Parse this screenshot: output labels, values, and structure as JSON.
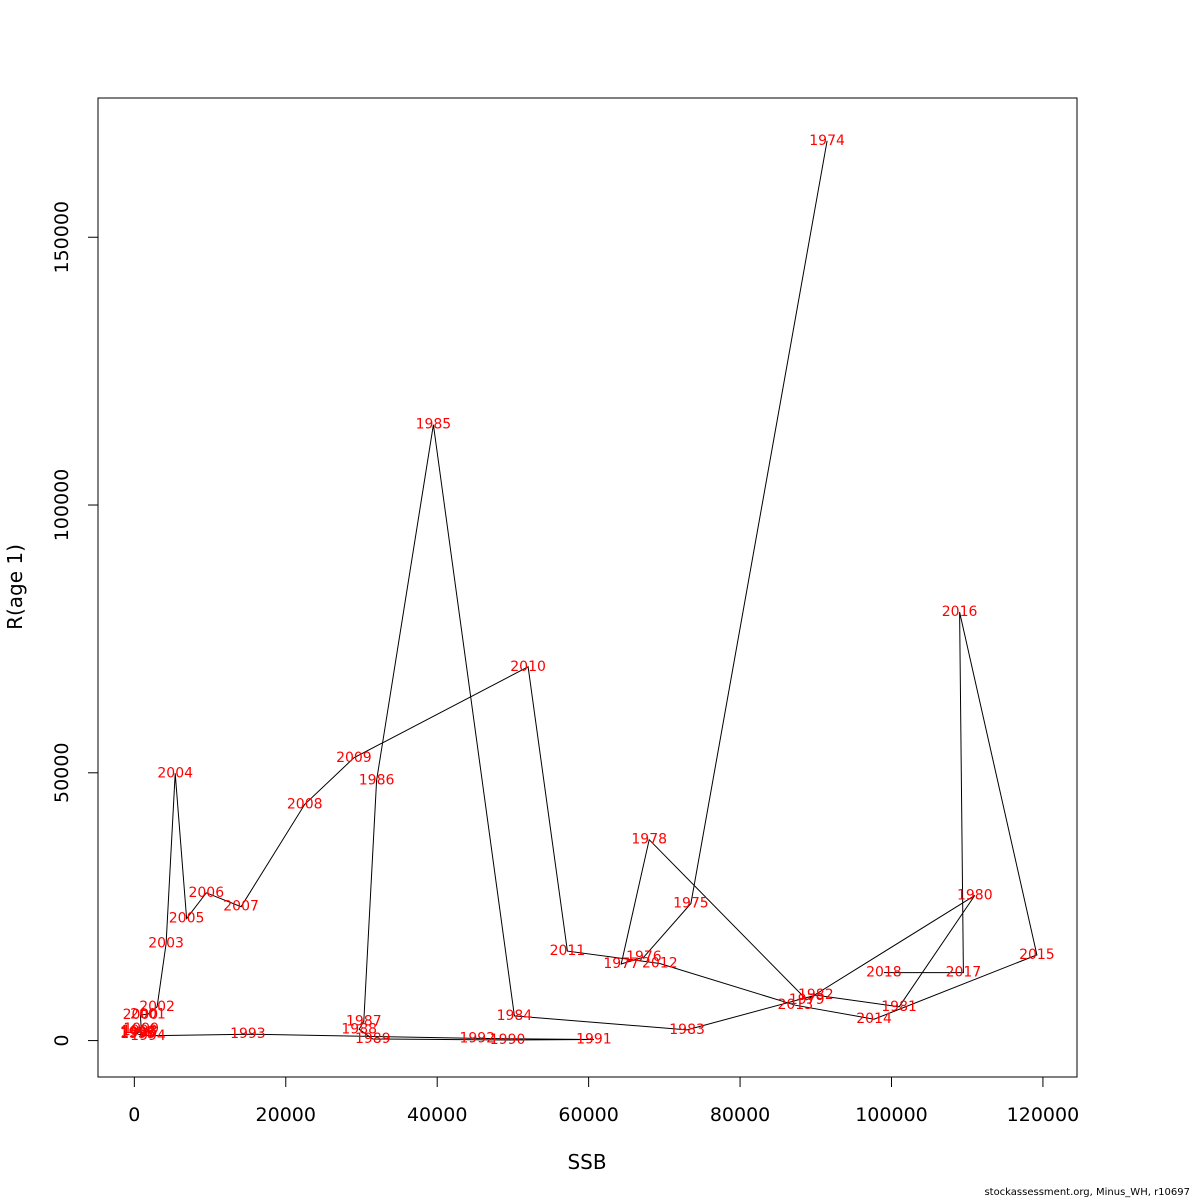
{
  "chart_data": {
    "type": "line",
    "title": "",
    "xlabel": "SSB",
    "ylabel": "R(age 1)",
    "xlim": [
      -4800,
      124500
    ],
    "ylim": [
      -6800,
      176000
    ],
    "x_ticks": [
      0,
      20000,
      40000,
      60000,
      80000,
      100000,
      120000
    ],
    "x_tick_labels": [
      "0",
      "20000",
      "40000",
      "60000",
      "80000",
      "100000",
      "120000"
    ],
    "y_ticks": [
      0,
      50000,
      100000,
      150000
    ],
    "y_tick_labels": [
      "0",
      "50000",
      "100000",
      "150000"
    ],
    "grid": false,
    "line_color": "#000000",
    "label_color": "#ff0000",
    "points": [
      {
        "label": "1974",
        "x": 91500,
        "y": 168000
      },
      {
        "label": "1975",
        "x": 73500,
        "y": 25600
      },
      {
        "label": "1976",
        "x": 67300,
        "y": 15600
      },
      {
        "label": "1977",
        "x": 64300,
        "y": 14300
      },
      {
        "label": "1978",
        "x": 68000,
        "y": 37500
      },
      {
        "label": "1979",
        "x": 88800,
        "y": 7600
      },
      {
        "label": "1980",
        "x": 111000,
        "y": 27100
      },
      {
        "label": "1981",
        "x": 101000,
        "y": 6300
      },
      {
        "label": "1982",
        "x": 90000,
        "y": 8500
      },
      {
        "label": "1983",
        "x": 73000,
        "y": 2000
      },
      {
        "label": "1984",
        "x": 50200,
        "y": 4600
      },
      {
        "label": "1985",
        "x": 39500,
        "y": 115000
      },
      {
        "label": "1986",
        "x": 32000,
        "y": 48600
      },
      {
        "label": "1987",
        "x": 30300,
        "y": 3600
      },
      {
        "label": "1988",
        "x": 29700,
        "y": 2100
      },
      {
        "label": "1989",
        "x": 31500,
        "y": 300
      },
      {
        "label": "1990",
        "x": 49300,
        "y": 100
      },
      {
        "label": "1991",
        "x": 60700,
        "y": 200
      },
      {
        "label": "1992",
        "x": 45300,
        "y": 400
      },
      {
        "label": "1993",
        "x": 15000,
        "y": 1200
      },
      {
        "label": "1994",
        "x": 1800,
        "y": 900
      },
      {
        "label": "1995",
        "x": 500,
        "y": 1200
      },
      {
        "label": "1996",
        "x": 400,
        "y": 1300
      },
      {
        "label": "1997",
        "x": 500,
        "y": 1500
      },
      {
        "label": "1998",
        "x": 700,
        "y": 1800
      },
      {
        "label": "1999",
        "x": 900,
        "y": 2200
      },
      {
        "label": "2000",
        "x": 800,
        "y": 4800
      },
      {
        "label": "2001",
        "x": 1800,
        "y": 4900
      },
      {
        "label": "2002",
        "x": 3000,
        "y": 6300
      },
      {
        "label": "2003",
        "x": 4200,
        "y": 18100
      },
      {
        "label": "2004",
        "x": 5400,
        "y": 49900
      },
      {
        "label": "2005",
        "x": 6900,
        "y": 22800
      },
      {
        "label": "2006",
        "x": 9500,
        "y": 27600
      },
      {
        "label": "2007",
        "x": 14100,
        "y": 25000
      },
      {
        "label": "2008",
        "x": 22500,
        "y": 44100
      },
      {
        "label": "2009",
        "x": 29000,
        "y": 52800
      },
      {
        "label": "2010",
        "x": 52000,
        "y": 69800
      },
      {
        "label": "2011",
        "x": 57200,
        "y": 16700
      },
      {
        "label": "2012",
        "x": 69400,
        "y": 14400
      },
      {
        "label": "2013",
        "x": 87300,
        "y": 6600
      },
      {
        "label": "2014",
        "x": 97700,
        "y": 4000
      },
      {
        "label": "2015",
        "x": 119200,
        "y": 16000
      },
      {
        "label": "2016",
        "x": 109000,
        "y": 80000
      },
      {
        "label": "2017",
        "x": 109500,
        "y": 12700
      },
      {
        "label": "2018",
        "x": 99000,
        "y": 12700
      }
    ]
  },
  "footer_text": "stockassessment.org, Minus_WH, r10697"
}
